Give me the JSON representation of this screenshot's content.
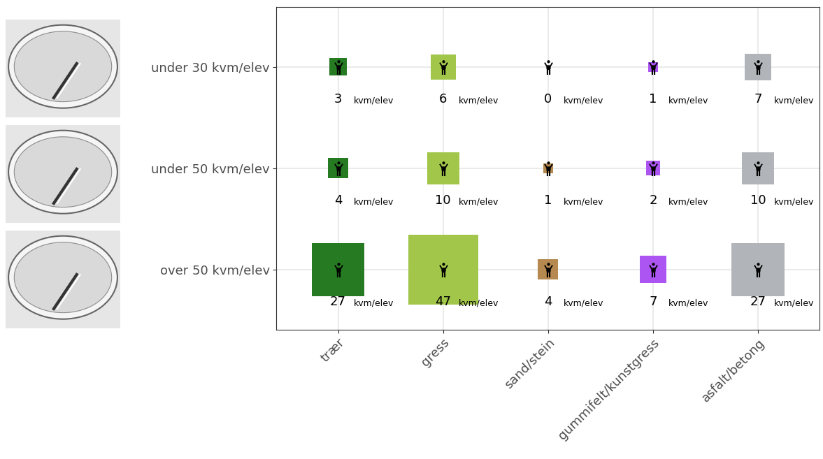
{
  "chart_data": {
    "type": "scatter",
    "marker": "square",
    "categories": [
      "trær",
      "gress",
      "sand/stein",
      "gummifelt/kunstgress",
      "asfalt/betong"
    ],
    "y_categories": [
      "under 30 kvm/elev",
      "under 50 kvm/elev",
      "over 50 kvm/elev"
    ],
    "values": [
      [
        3,
        6,
        0,
        1,
        7
      ],
      [
        4,
        10,
        1,
        2,
        10
      ],
      [
        27,
        47,
        4,
        7,
        27
      ]
    ],
    "value_unit": "kvm/elev",
    "colors": [
      "#267b22",
      "#a2c64a",
      "#b5894f",
      "#ac55f2",
      "#b1b5b9"
    ],
    "data_labels": true,
    "grid": true
  }
}
